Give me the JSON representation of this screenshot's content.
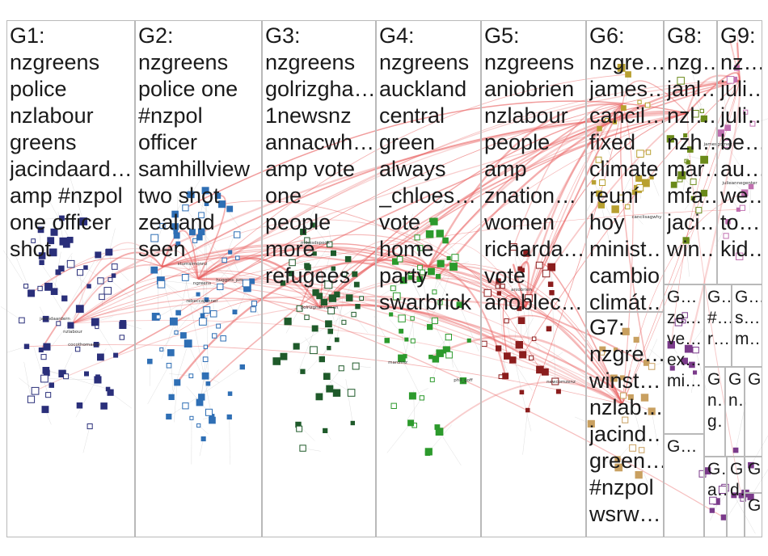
{
  "groups": [
    {
      "id": "G1",
      "title": "G1:",
      "keywords": [
        "nzgreens",
        "police",
        "nzlabour",
        "greens",
        "jacindaard…",
        "amp #nzpol",
        "one officer",
        "shot"
      ]
    },
    {
      "id": "G2",
      "title": "G2:",
      "keywords": [
        "nzgreens",
        "police one",
        "#nzpol",
        "officer",
        "samhillview",
        "two shot",
        "zealand",
        "seen"
      ]
    },
    {
      "id": "G3",
      "title": "G3:",
      "keywords": [
        "nzgreens",
        "golrizgha…",
        "1newsnz",
        "annacwh…",
        "amp vote",
        "one",
        "people",
        "more",
        "refugees"
      ]
    },
    {
      "id": "G4",
      "title": "G4:",
      "keywords": [
        "nzgreens",
        "auckland",
        "central",
        "green",
        "always",
        "_chloes…",
        "vote",
        "home",
        "party",
        "swarbrick"
      ]
    },
    {
      "id": "G5",
      "title": "G5:",
      "keywords": [
        "nzgreens",
        "aniobrien",
        "nzlabour",
        "people",
        "amp",
        "znation…",
        "women",
        "richarda…",
        "vote",
        "anoblec…"
      ]
    },
    {
      "id": "G6",
      "title": "G6:",
      "keywords": [
        "nzgre…",
        "james…",
        "cancil…",
        "fixed",
        "climate",
        "reuní",
        "hoy",
        "minist…",
        "cambio",
        "climát…"
      ]
    },
    {
      "id": "G7",
      "title": "G7:",
      "keywords": [
        "nzgre…",
        "winst…",
        "nzlab…",
        "jacind…",
        "green…",
        "#nzpol",
        "wsrw…"
      ]
    },
    {
      "id": "G8",
      "title": "G8:",
      "keywords": [
        "nzg…",
        "janl…",
        "nzl…",
        "nzh…",
        "mar…",
        "mfa…",
        "jaci…",
        "win…"
      ]
    },
    {
      "id": "G9",
      "title": "G9:",
      "keywords": [
        "nz…",
        "juli…",
        "juli…",
        "be…",
        "au…",
        "we…",
        "to…",
        "kid…"
      ]
    },
    {
      "id": "G10",
      "title": "G…",
      "keywords": [
        "ze…",
        "ve…",
        "ex…",
        "mi…"
      ]
    },
    {
      "id": "G11",
      "title": "G…",
      "keywords": [
        "#…",
        "r…"
      ]
    },
    {
      "id": "G12",
      "title": "G…",
      "keywords": [
        "s…",
        "m…"
      ]
    },
    {
      "id": "G13",
      "title": "G…",
      "keywords": []
    },
    {
      "id": "G14",
      "title": "G",
      "keywords": [
        "n…",
        "g…"
      ]
    },
    {
      "id": "G15",
      "title": "G",
      "keywords": [
        "n…"
      ]
    },
    {
      "id": "G16",
      "title": "G",
      "keywords": []
    },
    {
      "id": "G17",
      "title": "G…",
      "keywords": [
        "a…"
      ]
    },
    {
      "id": "G18",
      "title": "G",
      "keywords": [
        "d…"
      ]
    },
    {
      "id": "G19",
      "title": "G…",
      "keywords": []
    },
    {
      "id": "G20",
      "title": "G",
      "keywords": []
    }
  ],
  "node_labels": [
    "ngreens",
    "jacindaardern",
    "nzlabour",
    "newcomzenz",
    "marchnz",
    "phil_goff",
    "mikesdspook",
    "stumsimonnz",
    "golrizghahraman",
    "cocothomasnz",
    "jamesgomez",
    "rebeccajenner",
    "huggins_pm",
    "canclisagwhy",
    "julieannegenter",
    "aniobrien"
  ],
  "colors": {
    "edge": "#e85a5a",
    "edge_faint": "#c9c9c9",
    "border": "#b9b9b9",
    "g1": "#2a2f7a",
    "g2": "#2f6fb5",
    "g3": "#1f5a2a",
    "g4": "#2c9a2c",
    "g5": "#8b1d1d",
    "g6": "#b8a030",
    "g7": "#c9a060",
    "g8": "#6b8a1a",
    "g9": "#c070b0",
    "g10": "#7a3a8a"
  }
}
